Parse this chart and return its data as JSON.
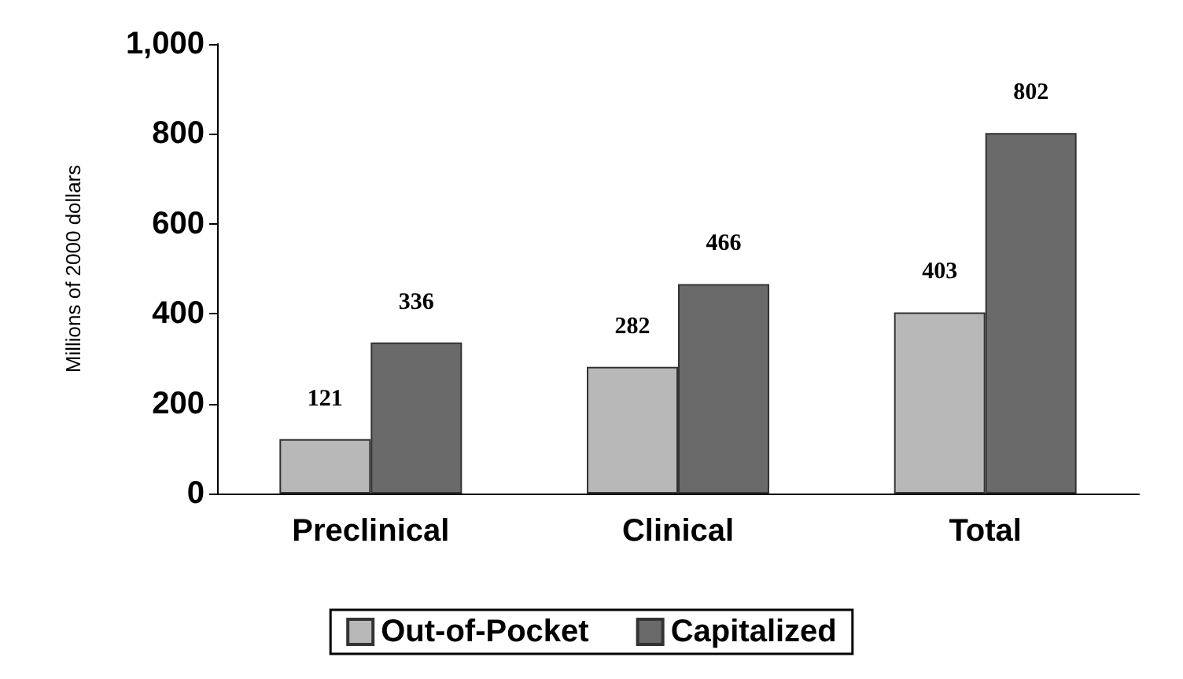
{
  "chart_data": {
    "type": "bar",
    "ylabel": "Millions of 2000 dollars",
    "categories": [
      "Preclinical",
      "Clinical",
      "Total"
    ],
    "series": [
      {
        "name": "Out-of-Pocket",
        "color": "#b8b8b8",
        "values": [
          121,
          282,
          403
        ]
      },
      {
        "name": "Capitalized",
        "color": "#6a6a6a",
        "values": [
          336,
          466,
          802
        ]
      }
    ],
    "ylim": [
      0,
      1000
    ],
    "yticks": [
      0,
      200,
      400,
      600,
      800,
      {
        "value": 1000,
        "label": "1,000"
      }
    ],
    "grid": false,
    "legend": "bottom",
    "data_labels": true
  }
}
